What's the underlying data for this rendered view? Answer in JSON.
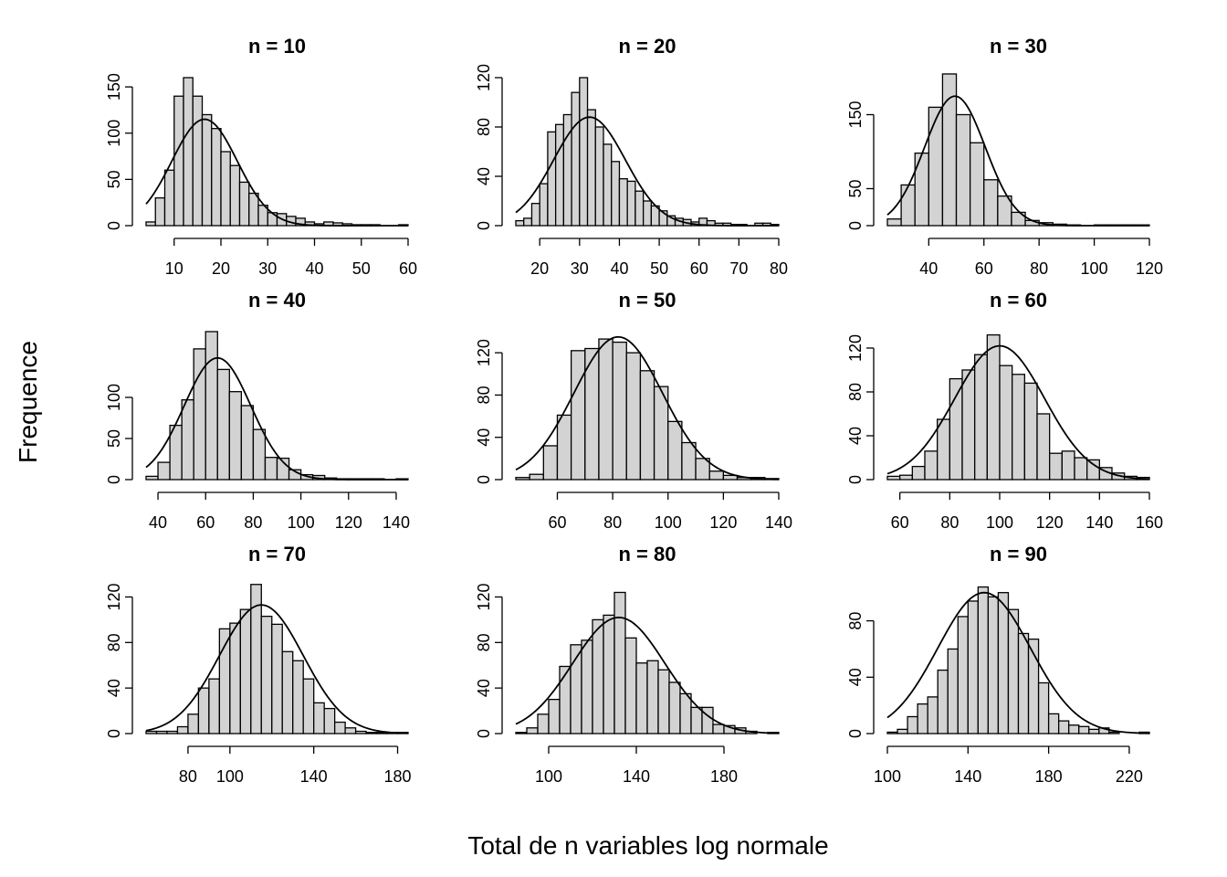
{
  "figure": {
    "xlabel": "Total de n variables log normale",
    "ylabel": "Frequence"
  },
  "chart_data": [
    {
      "type": "bar",
      "title": "n = 10",
      "bin_edges": [
        4,
        6,
        8,
        10,
        12,
        14,
        16,
        18,
        20,
        22,
        24,
        26,
        28,
        30,
        32,
        34,
        36,
        38,
        40,
        42,
        44,
        46,
        48,
        50,
        52,
        54,
        56,
        58,
        60
      ],
      "values": [
        4,
        30,
        60,
        140,
        160,
        140,
        120,
        105,
        80,
        65,
        47,
        35,
        22,
        14,
        13,
        10,
        8,
        4,
        2,
        4,
        3,
        2,
        1,
        1,
        1,
        0,
        0,
        1
      ],
      "curve": {
        "mean": 16.5,
        "sd": 7,
        "peak": 115
      },
      "xlim": [
        4,
        60
      ],
      "ylim": [
        0,
        160
      ],
      "xticks": [
        10,
        20,
        30,
        40,
        50,
        60
      ],
      "yticks": [
        0,
        50,
        100,
        150
      ]
    },
    {
      "type": "bar",
      "title": "n = 20",
      "bin_edges": [
        14,
        16,
        18,
        20,
        22,
        24,
        26,
        28,
        30,
        32,
        34,
        36,
        38,
        40,
        42,
        44,
        46,
        48,
        50,
        52,
        54,
        56,
        58,
        60,
        62,
        64,
        66,
        68,
        70,
        72,
        74,
        76,
        78,
        80
      ],
      "values": [
        4,
        6,
        18,
        34,
        76,
        82,
        90,
        108,
        120,
        94,
        80,
        66,
        52,
        38,
        36,
        28,
        20,
        16,
        12,
        8,
        6,
        5,
        3,
        6,
        4,
        2,
        2,
        1,
        1,
        0,
        2,
        2,
        1
      ],
      "curve": {
        "mean": 32.5,
        "sd": 9,
        "peak": 88
      },
      "xlim": [
        14,
        80
      ],
      "ylim": [
        0,
        120
      ],
      "xticks": [
        20,
        30,
        40,
        50,
        60,
        70,
        80
      ],
      "yticks": [
        0,
        40,
        80,
        120
      ]
    },
    {
      "type": "bar",
      "title": "n = 30",
      "bin_edges": [
        25,
        30,
        35,
        40,
        45,
        50,
        55,
        60,
        65,
        70,
        75,
        80,
        85,
        90,
        95,
        100,
        105,
        110,
        115,
        120
      ],
      "values": [
        9,
        55,
        98,
        160,
        205,
        150,
        112,
        62,
        40,
        18,
        7,
        4,
        2,
        1,
        0,
        1,
        1,
        1,
        1
      ],
      "curve": {
        "mean": 49.5,
        "sd": 11,
        "peak": 175
      },
      "xlim": [
        25,
        120
      ],
      "ylim": [
        0,
        200
      ],
      "xticks": [
        40,
        60,
        80,
        100,
        120
      ],
      "yticks": [
        0,
        50,
        150
      ]
    },
    {
      "type": "bar",
      "title": "n = 40",
      "bin_edges": [
        35,
        40,
        45,
        50,
        55,
        60,
        65,
        70,
        75,
        80,
        85,
        90,
        95,
        100,
        105,
        110,
        115,
        120,
        125,
        130,
        135,
        140,
        145
      ],
      "values": [
        4,
        21,
        66,
        97,
        159,
        180,
        134,
        107,
        90,
        61,
        27,
        26,
        12,
        6,
        5,
        2,
        1,
        1,
        1,
        1,
        0,
        1
      ],
      "curve": {
        "mean": 65,
        "sd": 14,
        "peak": 148
      },
      "xlim": [
        35,
        145
      ],
      "ylim": [
        0,
        180
      ],
      "xticks": [
        40,
        60,
        80,
        100,
        120,
        140
      ],
      "yticks": [
        0,
        50,
        100
      ]
    },
    {
      "type": "bar",
      "title": "n = 50",
      "bin_edges": [
        45,
        50,
        55,
        60,
        65,
        70,
        75,
        80,
        85,
        90,
        95,
        100,
        105,
        110,
        115,
        120,
        125,
        130,
        135,
        140
      ],
      "values": [
        2,
        5,
        32,
        61,
        122,
        124,
        133,
        130,
        120,
        103,
        88,
        55,
        35,
        20,
        8,
        4,
        2,
        2,
        1
      ],
      "curve": {
        "mean": 82,
        "sd": 16,
        "peak": 135
      },
      "xlim": [
        45,
        140
      ],
      "ylim": [
        0,
        140
      ],
      "xticks": [
        60,
        80,
        100,
        120,
        140
      ],
      "yticks": [
        0,
        40,
        80,
        120
      ]
    },
    {
      "type": "bar",
      "title": "n = 60",
      "bin_edges": [
        55,
        60,
        65,
        70,
        75,
        80,
        85,
        90,
        95,
        100,
        105,
        110,
        115,
        120,
        125,
        130,
        135,
        140,
        145,
        150,
        155,
        160
      ],
      "values": [
        3,
        4,
        12,
        26,
        55,
        92,
        100,
        114,
        132,
        104,
        96,
        88,
        60,
        24,
        26,
        20,
        18,
        11,
        6,
        3,
        2
      ],
      "curve": {
        "mean": 100,
        "sd": 18,
        "peak": 122
      },
      "xlim": [
        55,
        160
      ],
      "ylim": [
        0,
        135
      ],
      "xticks": [
        60,
        80,
        100,
        120,
        140,
        160
      ],
      "yticks": [
        0,
        40,
        80,
        120
      ]
    },
    {
      "type": "bar",
      "title": "n = 70",
      "bin_edges": [
        60,
        65,
        70,
        75,
        80,
        85,
        90,
        95,
        100,
        105,
        110,
        115,
        120,
        125,
        130,
        135,
        140,
        145,
        150,
        155,
        160,
        165,
        170,
        175,
        180,
        185
      ],
      "values": [
        2,
        2,
        2,
        6,
        17,
        40,
        48,
        92,
        97,
        109,
        131,
        103,
        96,
        72,
        64,
        48,
        27,
        22,
        10,
        5,
        2,
        1,
        1,
        1,
        1
      ],
      "curve": {
        "mean": 115,
        "sd": 20,
        "peak": 113
      },
      "xlim": [
        60,
        185
      ],
      "ylim": [
        0,
        130
      ],
      "xticks": [
        80,
        100,
        140,
        180
      ],
      "yticks": [
        0,
        40,
        80,
        120
      ]
    },
    {
      "type": "bar",
      "title": "n = 80",
      "bin_edges": [
        85,
        90,
        95,
        100,
        105,
        110,
        115,
        120,
        125,
        130,
        135,
        140,
        145,
        150,
        155,
        160,
        165,
        170,
        175,
        180,
        185,
        190,
        195,
        200,
        205
      ],
      "values": [
        1,
        5,
        17,
        30,
        59,
        78,
        82,
        100,
        104,
        124,
        84,
        62,
        64,
        56,
        45,
        35,
        23,
        23,
        8,
        7,
        5,
        2,
        0,
        1
      ],
      "curve": {
        "mean": 132,
        "sd": 21,
        "peak": 102
      },
      "xlim": [
        85,
        205
      ],
      "ylim": [
        0,
        130
      ],
      "xticks": [
        100,
        140,
        180
      ],
      "yticks": [
        0,
        40,
        80,
        120
      ]
    },
    {
      "type": "bar",
      "title": "n = 90",
      "bin_edges": [
        100,
        105,
        110,
        115,
        120,
        125,
        130,
        135,
        140,
        145,
        150,
        155,
        160,
        165,
        170,
        175,
        180,
        185,
        190,
        195,
        200,
        205,
        210,
        215,
        220,
        225,
        230
      ],
      "values": [
        1,
        3,
        12,
        21,
        26,
        45,
        60,
        83,
        94,
        104,
        97,
        100,
        88,
        71,
        67,
        36,
        14,
        9,
        6,
        5,
        3,
        4,
        1,
        0,
        0,
        1
      ],
      "curve": {
        "mean": 148,
        "sd": 23,
        "peak": 100
      },
      "xlim": [
        100,
        230
      ],
      "ylim": [
        0,
        105
      ],
      "xticks": [
        100,
        140,
        180,
        220
      ],
      "yticks": [
        0,
        40,
        80
      ]
    }
  ]
}
